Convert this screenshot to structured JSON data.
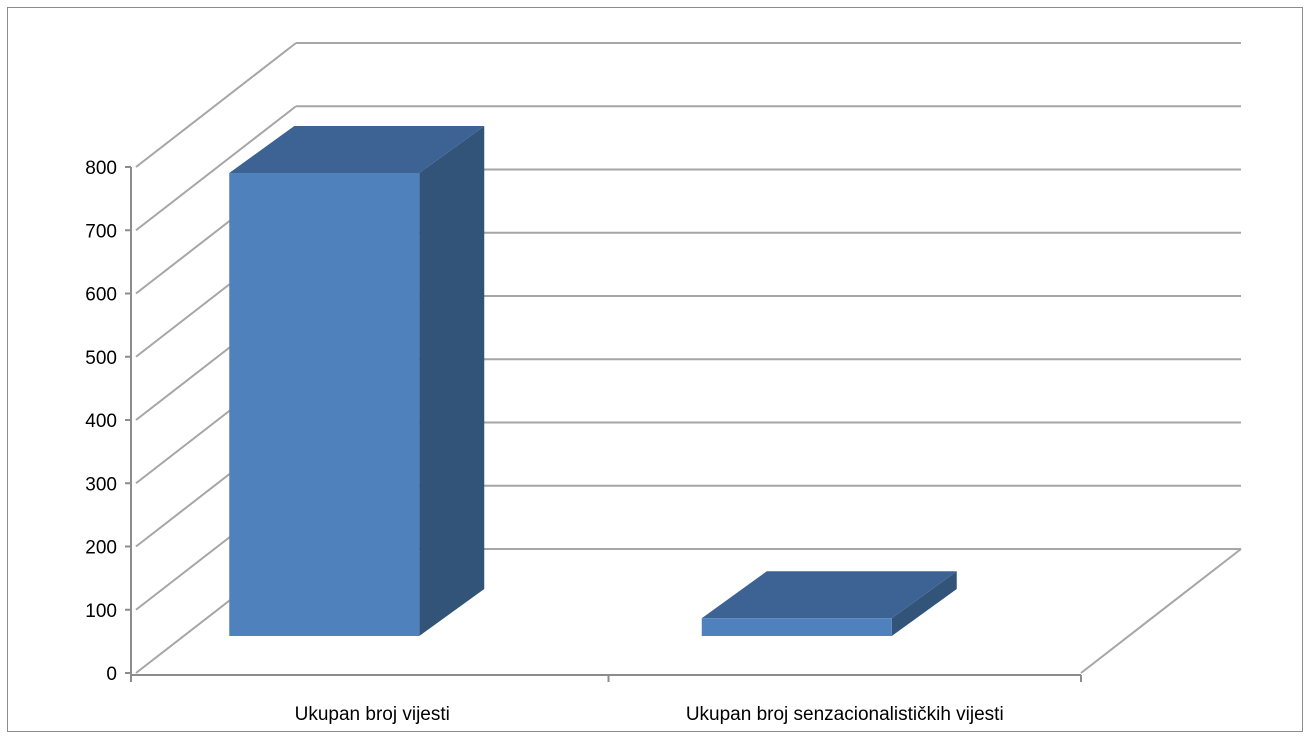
{
  "chart_data": {
    "type": "bar",
    "style": "3d-column",
    "title": "",
    "xlabel": "",
    "ylabel": "",
    "ylim": [
      0,
      800
    ],
    "ytick_step": 100,
    "yticks": [
      "0",
      "100",
      "200",
      "300",
      "400",
      "500",
      "600",
      "700",
      "800"
    ],
    "grid": true,
    "legend": "none",
    "categories": [
      "Ukupan broj vijesti",
      "Ukupan broj senzacionalističkih vijesti"
    ],
    "values": [
      732,
      28
    ]
  },
  "colors": {
    "bar_front": "#4f81bd",
    "bar_top": "#3d6394",
    "bar_side": "#335479",
    "grid": "#a6a6a6",
    "axis": "#8c8c8c"
  }
}
